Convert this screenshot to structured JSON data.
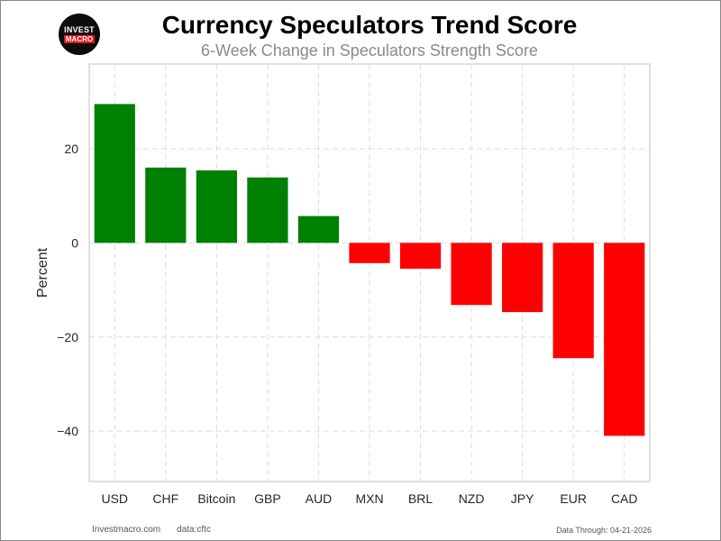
{
  "logo": {
    "line1": "INVEST",
    "line2": "MACRO"
  },
  "footer": {
    "site": "Investmacro.com",
    "source": "data:cftc",
    "data_through": "Data Through: 04-21-2026"
  },
  "colors": {
    "positive": "#008000",
    "negative": "#ff0000"
  },
  "chart_data": {
    "type": "bar",
    "title": "Currency Speculators Trend Score",
    "subtitle": "6-Week Change in Speculators Strength Score",
    "xlabel": "",
    "ylabel": "Percent",
    "categories": [
      "USD",
      "CHF",
      "Bitcoin",
      "GBP",
      "AUD",
      "MXN",
      "BRL",
      "NZD",
      "JPY",
      "EUR",
      "CAD"
    ],
    "values": [
      29.5,
      16.0,
      15.4,
      13.9,
      5.7,
      -4.3,
      -5.5,
      -13.2,
      -14.7,
      -24.5,
      -41.0
    ],
    "ylim": [
      -50.7,
      38.0
    ],
    "yticks": [
      20,
      0,
      -20,
      -40
    ],
    "ytick_labels": [
      "20",
      "0",
      "−20",
      "−40"
    ],
    "grid": true,
    "legend": "none"
  }
}
